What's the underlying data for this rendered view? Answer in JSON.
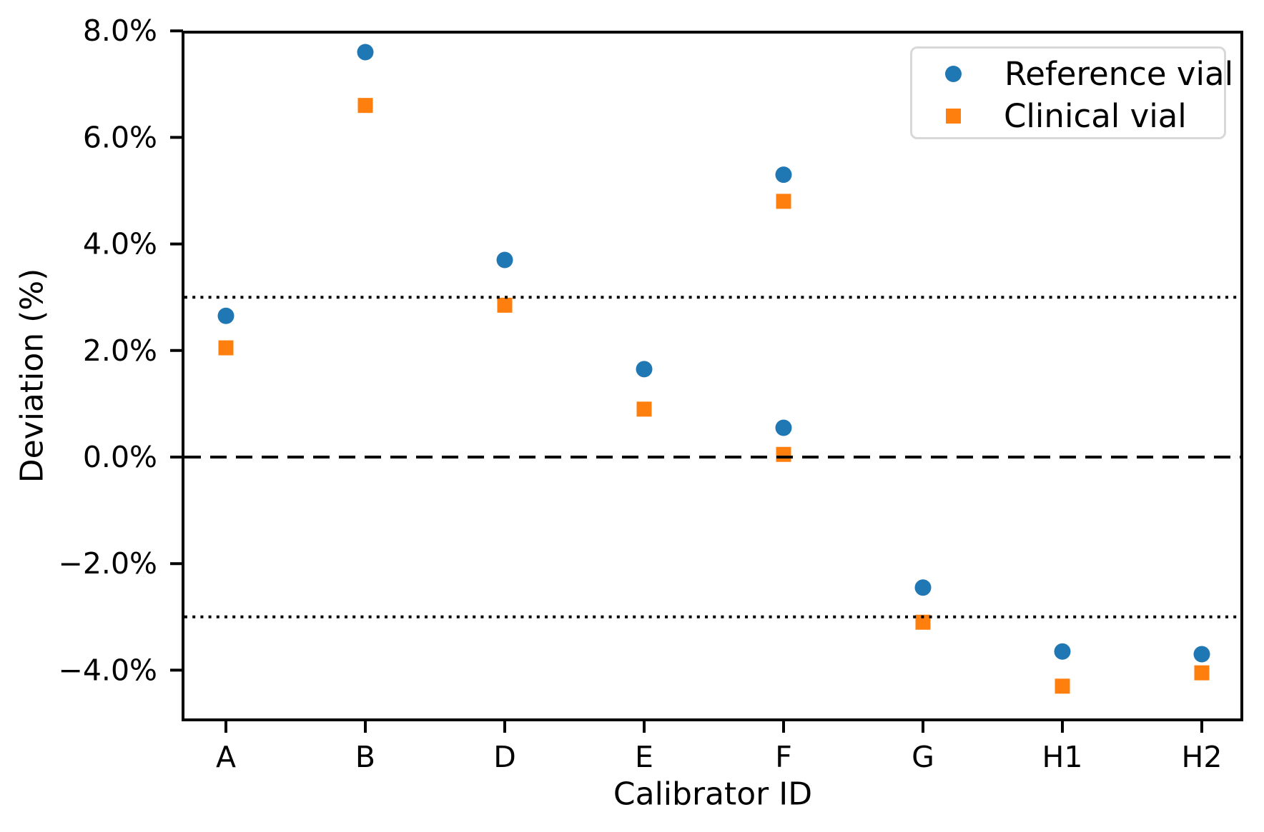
{
  "chart_data": {
    "type": "scatter",
    "title": "",
    "xlabel": "Calibrator ID",
    "ylabel": "Deviation (%)",
    "categories": [
      "A",
      "B",
      "D",
      "E",
      "F",
      "G",
      "H1",
      "H2"
    ],
    "series": [
      {
        "name": "Reference vial",
        "marker": "circle",
        "color": "#1f77b4",
        "points": [
          {
            "category": "A",
            "value": 2.65
          },
          {
            "category": "B",
            "value": 7.6
          },
          {
            "category": "D",
            "value": 3.7
          },
          {
            "category": "E",
            "value": 1.65
          },
          {
            "category": "F",
            "value": 5.3
          },
          {
            "category": "F",
            "value": 0.55
          },
          {
            "category": "G",
            "value": -2.45
          },
          {
            "category": "H1",
            "value": -3.65
          },
          {
            "category": "H2",
            "value": -3.7
          }
        ]
      },
      {
        "name": "Clinical vial",
        "marker": "square",
        "color": "#ff7f0e",
        "points": [
          {
            "category": "A",
            "value": 2.05
          },
          {
            "category": "B",
            "value": 6.6
          },
          {
            "category": "D",
            "value": 2.85
          },
          {
            "category": "E",
            "value": 0.9
          },
          {
            "category": "F",
            "value": 4.8
          },
          {
            "category": "F",
            "value": 0.05
          },
          {
            "category": "G",
            "value": -3.1
          },
          {
            "category": "H1",
            "value": -4.3
          },
          {
            "category": "H2",
            "value": -4.05
          }
        ]
      }
    ],
    "y_ticks": [
      {
        "value": 8,
        "label": "8.0%"
      },
      {
        "value": 6,
        "label": "6.0%"
      },
      {
        "value": 4,
        "label": "4.0%"
      },
      {
        "value": 2,
        "label": "2.0%"
      },
      {
        "value": 0,
        "label": "0.0%"
      },
      {
        "value": -2,
        "label": "−2.0%"
      },
      {
        "value": -4,
        "label": "−4.0%"
      }
    ],
    "reference_lines": [
      {
        "value": 0,
        "style": "dashed"
      },
      {
        "value": 3,
        "style": "dotted"
      },
      {
        "value": -3,
        "style": "dotted"
      }
    ],
    "ylim": [
      -4.95,
      8.0
    ],
    "grid": false,
    "legend_position": "upper right",
    "axis_color": "#000000"
  }
}
